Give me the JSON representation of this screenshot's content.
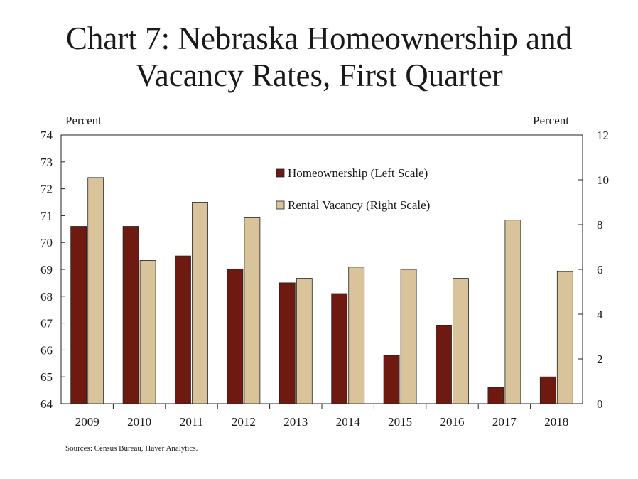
{
  "page": {
    "title_line1": "Chart 7: Nebraska Homeownership and",
    "title_line2": "Vacancy Rates, First Quarter",
    "left_unit": "Percent",
    "right_unit": "Percent",
    "source": "Sources: Census Bureau, Haver Analytics."
  },
  "chart_data": {
    "type": "bar",
    "title": "Chart 7: Nebraska Homeownership and Vacancy Rates, First Quarter",
    "categories": [
      "2009",
      "2010",
      "2011",
      "2012",
      "2013",
      "2014",
      "2015",
      "2016",
      "2017",
      "2018"
    ],
    "series": [
      {
        "name": "Homeownership (Left Scale)",
        "axis": "left",
        "color": "#6e1a10",
        "values": [
          70.6,
          70.6,
          69.5,
          69.0,
          68.5,
          68.1,
          65.8,
          66.9,
          64.6,
          65.0
        ]
      },
      {
        "name": "Rental Vacancy (Right Scale)",
        "axis": "right",
        "color": "#d8c39b",
        "values": [
          10.1,
          6.4,
          9.0,
          8.3,
          5.6,
          6.1,
          6.0,
          5.6,
          8.2,
          5.9
        ]
      }
    ],
    "y_left": {
      "label": "Percent",
      "lim": [
        64,
        74
      ],
      "ticks": [
        64,
        65,
        66,
        67,
        68,
        69,
        70,
        71,
        72,
        73,
        74
      ]
    },
    "y_right": {
      "label": "Percent",
      "lim": [
        0,
        12
      ],
      "ticks": [
        0,
        2,
        4,
        6,
        8,
        10,
        12
      ]
    },
    "legend_position": "top-center",
    "grid": false
  }
}
